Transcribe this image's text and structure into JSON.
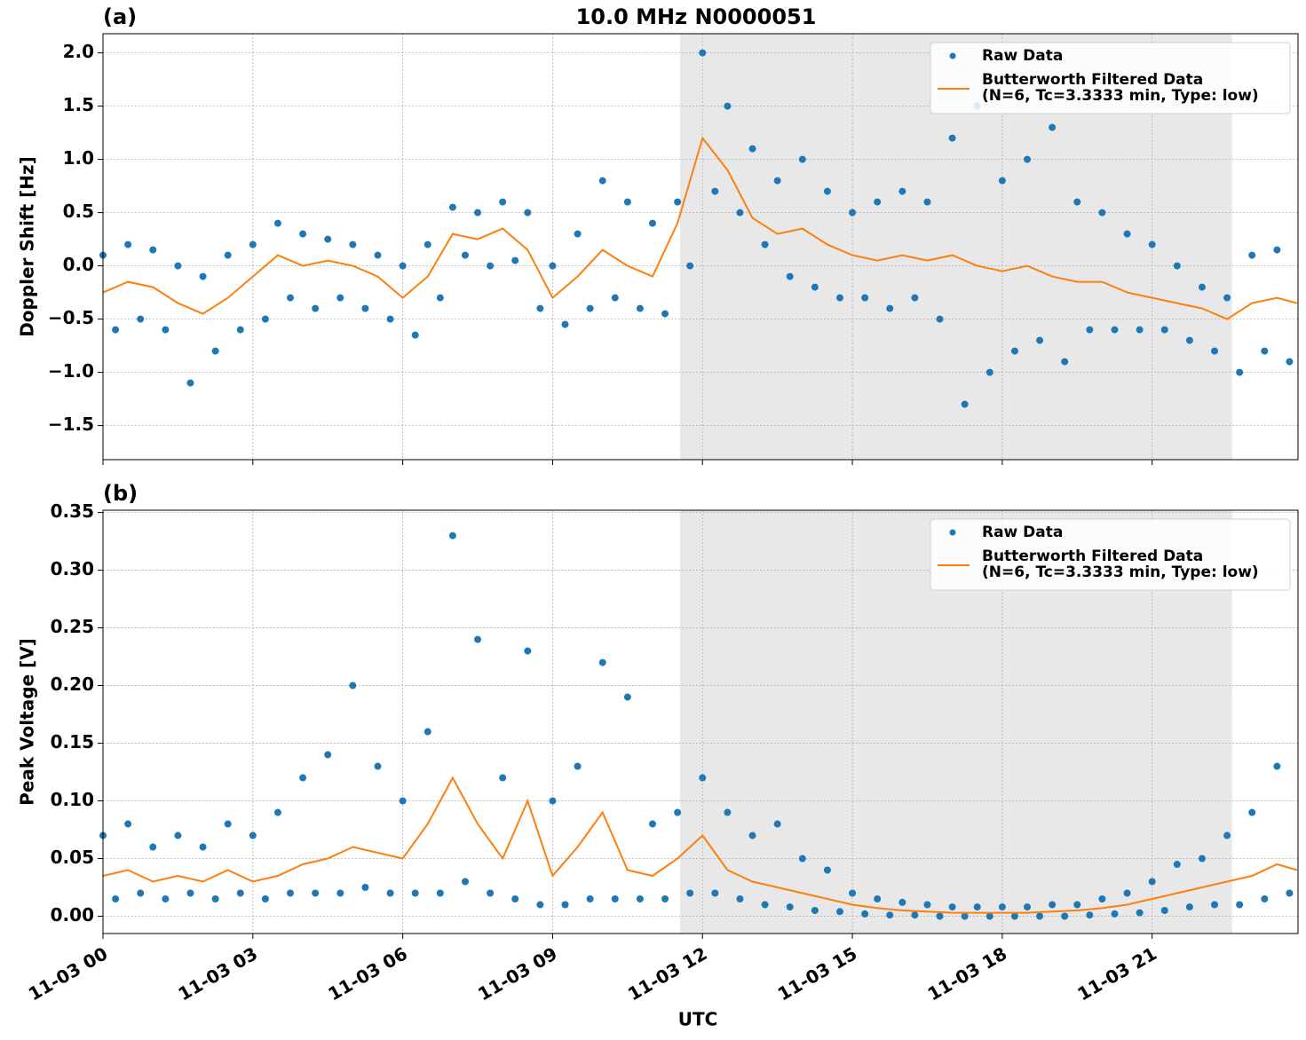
{
  "chart_data": [
    {
      "type": "scatter-line",
      "title": "10.0 MHz N0000051",
      "panel_label": "(a)",
      "ylabel": "Doppler Shift [Hz]",
      "xlim": [
        0,
        23.92
      ],
      "xticks": [
        0,
        3,
        6,
        9,
        12,
        15,
        18,
        21
      ],
      "ylim": [
        -1.82,
        2.18
      ],
      "yticks": [
        {
          "value": -1.5,
          "label": "−1.5"
        },
        {
          "value": -1.0,
          "label": "−1.0"
        },
        {
          "value": -0.5,
          "label": "−0.5"
        },
        {
          "value": 0,
          "label": "0.0"
        },
        0.5,
        {
          "value": 1,
          "label": "1.0"
        },
        1.5,
        {
          "value": 2,
          "label": "2.0"
        }
      ],
      "grid": true,
      "legend": "upper right",
      "shaded_span": [
        11.55,
        22.6
      ],
      "series": [
        {
          "name": "Raw Data",
          "kind": "scatter",
          "color": "#1f77b4",
          "x": [
            0,
            0.25,
            0.5,
            0.75,
            1,
            1.25,
            1.5,
            1.75,
            2,
            2.25,
            2.5,
            2.75,
            3,
            3.25,
            3.5,
            3.75,
            4,
            4.25,
            4.5,
            4.75,
            5,
            5.25,
            5.5,
            5.75,
            6,
            6.25,
            6.5,
            6.75,
            7,
            7.25,
            7.5,
            7.75,
            8,
            8.25,
            8.5,
            8.75,
            9,
            9.25,
            9.5,
            9.75,
            10,
            10.25,
            10.5,
            10.75,
            11,
            11.25,
            11.5,
            11.75,
            12,
            12.25,
            12.5,
            12.75,
            13,
            13.25,
            13.5,
            13.75,
            14,
            14.25,
            14.5,
            14.75,
            15,
            15.25,
            15.5,
            15.75,
            16,
            16.25,
            16.5,
            16.75,
            17,
            17.25,
            17.5,
            17.75,
            18,
            18.25,
            18.5,
            18.75,
            19,
            19.25,
            19.5,
            19.75,
            20,
            20.25,
            20.5,
            20.75,
            21,
            21.25,
            21.5,
            21.75,
            22,
            22.25,
            22.5,
            22.75,
            23,
            23.25,
            23.5,
            23.75
          ],
          "values": [
            0.1,
            -0.6,
            0.2,
            -0.5,
            0.15,
            -0.6,
            0,
            -1.1,
            -0.1,
            -0.8,
            0.1,
            -0.6,
            0.2,
            -0.5,
            0.4,
            -0.3,
            0.3,
            -0.4,
            0.25,
            -0.3,
            0.2,
            -0.4,
            0.1,
            -0.5,
            0,
            -0.65,
            0.2,
            -0.3,
            0.55,
            0.1,
            0.5,
            0,
            0.6,
            0.05,
            0.5,
            -0.4,
            0,
            -0.55,
            0.3,
            -0.4,
            0.8,
            -0.3,
            0.6,
            -0.4,
            0.4,
            -0.45,
            0.6,
            0,
            2.0,
            0.7,
            1.5,
            0.5,
            1.1,
            0.2,
            0.8,
            -0.1,
            1.0,
            -0.2,
            0.7,
            -0.3,
            0.5,
            -0.3,
            0.6,
            -0.4,
            0.7,
            -0.3,
            0.6,
            -0.5,
            1.2,
            -1.3,
            1.5,
            -1.0,
            0.8,
            -0.8,
            1.0,
            -0.7,
            1.3,
            -0.9,
            0.6,
            -0.6,
            0.5,
            -0.6,
            0.3,
            -0.6,
            0.2,
            -0.6,
            0,
            -0.7,
            -0.2,
            -0.8,
            -0.3,
            -1.0,
            0.1,
            -0.8,
            0.15,
            -0.9
          ]
        },
        {
          "name": "Butterworth Filtered Data\n(N=6, Tc=3.3333 min, Type: low)",
          "kind": "line",
          "color": "#ff7f0e",
          "x": [
            0,
            0.5,
            1,
            1.5,
            2,
            2.5,
            3,
            3.5,
            4,
            4.5,
            5,
            5.5,
            6,
            6.5,
            7,
            7.5,
            8,
            8.5,
            9,
            9.5,
            10,
            10.5,
            11,
            11.5,
            12,
            12.5,
            13,
            13.5,
            14,
            14.5,
            15,
            15.5,
            16,
            16.5,
            17,
            17.5,
            18,
            18.5,
            19,
            19.5,
            20,
            20.5,
            21,
            21.5,
            22,
            22.5,
            23,
            23.5,
            23.9
          ],
          "values": [
            -0.25,
            -0.15,
            -0.2,
            -0.35,
            -0.45,
            -0.3,
            -0.1,
            0.1,
            0,
            0.05,
            0,
            -0.1,
            -0.3,
            -0.1,
            0.3,
            0.25,
            0.35,
            0.15,
            -0.3,
            -0.1,
            0.15,
            0,
            -0.1,
            0.4,
            1.2,
            0.9,
            0.45,
            0.3,
            0.35,
            0.2,
            0.1,
            0.05,
            0.1,
            0.05,
            0.1,
            0,
            -0.05,
            0,
            -0.1,
            -0.15,
            -0.15,
            -0.25,
            -0.3,
            -0.35,
            -0.4,
            -0.5,
            -0.35,
            -0.3,
            -0.35
          ]
        }
      ]
    },
    {
      "type": "scatter-line",
      "panel_label": "(b)",
      "ylabel": "Peak Voltage [V]",
      "xlabel": "UTC",
      "xlim": [
        0,
        23.92
      ],
      "xticks": [
        {
          "value": 0,
          "label": "11-03 00"
        },
        {
          "value": 3,
          "label": "11-03 03"
        },
        {
          "value": 6,
          "label": "11-03 06"
        },
        {
          "value": 9,
          "label": "11-03 09"
        },
        {
          "value": 12,
          "label": "11-03 12"
        },
        {
          "value": 15,
          "label": "11-03 15"
        },
        {
          "value": 18,
          "label": "11-03 18"
        },
        {
          "value": 21,
          "label": "11-03 21"
        }
      ],
      "ylim": [
        -0.015,
        0.352
      ],
      "yticks": [
        {
          "value": 0,
          "label": "0.00"
        },
        0.05,
        {
          "value": 0.1,
          "label": "0.10"
        },
        0.15,
        {
          "value": 0.2,
          "label": "0.20"
        },
        0.25,
        {
          "value": 0.3,
          "label": "0.30"
        },
        0.35
      ],
      "grid": true,
      "legend": "upper right",
      "shaded_span": [
        11.55,
        22.6
      ],
      "series": [
        {
          "name": "Raw Data",
          "kind": "scatter",
          "color": "#1f77b4",
          "x": [
            0,
            0.25,
            0.5,
            0.75,
            1,
            1.25,
            1.5,
            1.75,
            2,
            2.25,
            2.5,
            2.75,
            3,
            3.25,
            3.5,
            3.75,
            4,
            4.25,
            4.5,
            4.75,
            5,
            5.25,
            5.5,
            5.75,
            6,
            6.25,
            6.5,
            6.75,
            7,
            7.25,
            7.5,
            7.75,
            8,
            8.25,
            8.5,
            8.75,
            9,
            9.25,
            9.5,
            9.75,
            10,
            10.25,
            10.5,
            10.75,
            11,
            11.25,
            11.5,
            11.75,
            12,
            12.25,
            12.5,
            12.75,
            13,
            13.25,
            13.5,
            13.75,
            14,
            14.25,
            14.5,
            14.75,
            15,
            15.25,
            15.5,
            15.75,
            16,
            16.25,
            16.5,
            16.75,
            17,
            17.25,
            17.5,
            17.75,
            18,
            18.25,
            18.5,
            18.75,
            19,
            19.25,
            19.5,
            19.75,
            20,
            20.25,
            20.5,
            20.75,
            21,
            21.25,
            21.5,
            21.75,
            22,
            22.25,
            22.5,
            22.75,
            23,
            23.25,
            23.5,
            23.75
          ],
          "values": [
            0.07,
            0.015,
            0.08,
            0.02,
            0.06,
            0.015,
            0.07,
            0.02,
            0.06,
            0.015,
            0.08,
            0.02,
            0.07,
            0.015,
            0.09,
            0.02,
            0.12,
            0.02,
            0.14,
            0.02,
            0.2,
            0.025,
            0.13,
            0.02,
            0.1,
            0.02,
            0.16,
            0.02,
            0.33,
            0.03,
            0.24,
            0.02,
            0.12,
            0.015,
            0.23,
            0.01,
            0.1,
            0.01,
            0.13,
            0.015,
            0.22,
            0.015,
            0.19,
            0.015,
            0.08,
            0.015,
            0.09,
            0.02,
            0.12,
            0.02,
            0.09,
            0.015,
            0.07,
            0.01,
            0.08,
            0.008,
            0.05,
            0.005,
            0.04,
            0.004,
            0.02,
            0.002,
            0.015,
            0.001,
            0.012,
            0.001,
            0.01,
            0,
            0.008,
            0,
            0.008,
            0,
            0.008,
            0,
            0.008,
            0,
            0.01,
            0,
            0.01,
            0.001,
            0.015,
            0.002,
            0.02,
            0.003,
            0.03,
            0.005,
            0.045,
            0.008,
            0.05,
            0.01,
            0.07,
            0.01,
            0.09,
            0.015,
            0.13,
            0.02
          ]
        },
        {
          "name": "Butterworth Filtered Data\n(N=6, Tc=3.3333 min, Type: low)",
          "kind": "line",
          "color": "#ff7f0e",
          "x": [
            0,
            0.5,
            1,
            1.5,
            2,
            2.5,
            3,
            3.5,
            4,
            4.5,
            5,
            5.5,
            6,
            6.5,
            7,
            7.5,
            8,
            8.5,
            9,
            9.5,
            10,
            10.5,
            11,
            11.5,
            12,
            12.5,
            13,
            13.5,
            14,
            14.5,
            15,
            15.5,
            16,
            16.5,
            17,
            17.5,
            18,
            18.5,
            19,
            19.5,
            20,
            20.5,
            21,
            21.5,
            22,
            22.5,
            23,
            23.5,
            23.9
          ],
          "values": [
            0.035,
            0.04,
            0.03,
            0.035,
            0.03,
            0.04,
            0.03,
            0.035,
            0.045,
            0.05,
            0.06,
            0.055,
            0.05,
            0.08,
            0.12,
            0.08,
            0.05,
            0.1,
            0.035,
            0.06,
            0.09,
            0.04,
            0.035,
            0.05,
            0.07,
            0.04,
            0.03,
            0.025,
            0.02,
            0.015,
            0.01,
            0.007,
            0.005,
            0.004,
            0.003,
            0.003,
            0.003,
            0.003,
            0.004,
            0.005,
            0.007,
            0.01,
            0.015,
            0.02,
            0.025,
            0.03,
            0.035,
            0.045,
            0.04
          ]
        }
      ]
    }
  ]
}
